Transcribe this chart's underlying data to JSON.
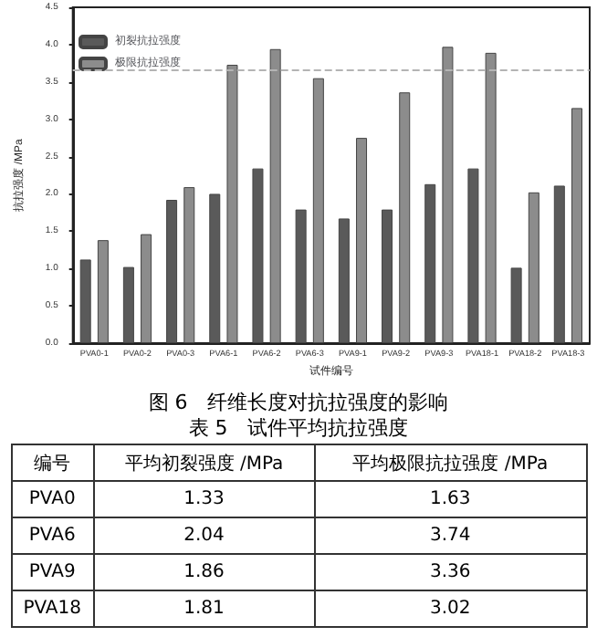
{
  "chart_data": {
    "type": "bar",
    "title": "图 6　纤维长度对抗拉强度的影响",
    "xlabel": "试件编号",
    "ylabel": "抗拉强度 /MPa",
    "categories": [
      "PVA0-1",
      "PVA0-2",
      "PVA0-3",
      "PVA6-1",
      "PVA6-2",
      "PVA6-3",
      "PVA9-1",
      "PVA9-2",
      "PVA9-3",
      "PVA18-1",
      "PVA18-2",
      "PVA18-3"
    ],
    "series": [
      {
        "name": "初裂抗拉强度",
        "color": "#5a5a5a",
        "values": [
          1.12,
          1.02,
          1.92,
          2.0,
          2.34,
          1.79,
          1.67,
          1.79,
          2.13,
          2.34,
          1.01,
          2.11
        ]
      },
      {
        "name": "极限抗拉强度",
        "color": "#8c8c8c",
        "values": [
          1.38,
          1.46,
          2.09,
          3.73,
          3.94,
          3.55,
          2.75,
          3.36,
          3.97,
          3.89,
          2.02,
          3.15
        ]
      }
    ],
    "ylim": [
      0,
      4.5
    ],
    "yticks": [
      {
        "value": 0,
        "label": "0.0"
      },
      {
        "value": 0.5,
        "label": "0.5"
      },
      {
        "value": 1,
        "label": "1.0"
      },
      {
        "value": 1.5,
        "label": "1.5"
      },
      {
        "value": 2,
        "label": "2.0"
      },
      {
        "value": 2.5,
        "label": "2.5"
      },
      {
        "value": 3,
        "label": "3.0"
      },
      {
        "value": 3.5,
        "label": "3.5"
      },
      {
        "value": 4,
        "label": "4.0"
      },
      {
        "value": 4.5,
        "label": "4.5"
      }
    ],
    "ref_lines": [
      {
        "axis": "y",
        "value": 3.66,
        "color": "#b4b4b4",
        "line_style": "dashed"
      }
    ],
    "grid": false,
    "legend": "top left",
    "annotations": [
      "表 5　试件平均抗拉强度",
      "编号",
      "平均初裂强度 /MPa",
      "平均极限抗拉强度 /MPa",
      "PVA0",
      "1.33",
      "1.63",
      "PVA6",
      "2.04",
      "3.74",
      "PVA9",
      "1.86",
      "3.36",
      "PVA18",
      "1.81",
      "3.02"
    ]
  }
}
